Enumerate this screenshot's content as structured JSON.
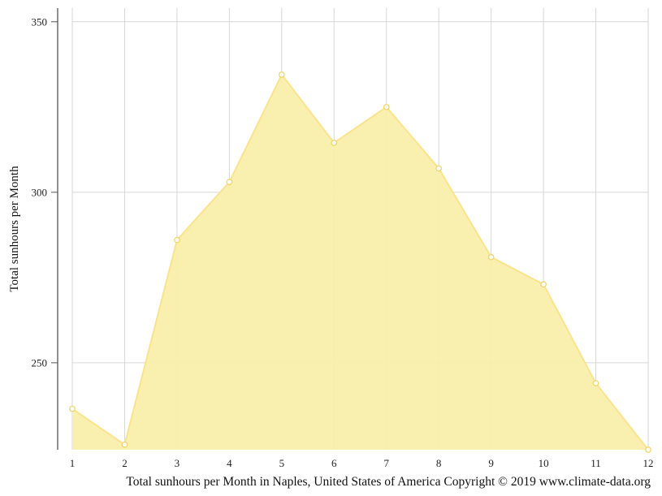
{
  "chart_data": {
    "type": "area",
    "title": "",
    "caption": "Total sunhours per Month in Naples, United States of America Copyright © 2019 www.climate-data.org",
    "xlabel": "",
    "ylabel": "Total sunhours per Month",
    "x": [
      1,
      2,
      3,
      4,
      5,
      6,
      7,
      8,
      9,
      10,
      11,
      12
    ],
    "values": [
      236.5,
      226.0,
      286.0,
      303.0,
      334.5,
      314.5,
      325.0,
      307.0,
      281.0,
      273.0,
      244.0,
      224.5
    ],
    "yticks": [
      250,
      300,
      350
    ],
    "ylim": [
      224.5,
      354
    ],
    "grid": true,
    "legend": "none",
    "colors": {
      "fill": "#f9eeaa",
      "line": "#fbe38c",
      "marker_stroke": "#f2d56a",
      "grid": "#d6d6d6",
      "axis": "#555555"
    }
  }
}
